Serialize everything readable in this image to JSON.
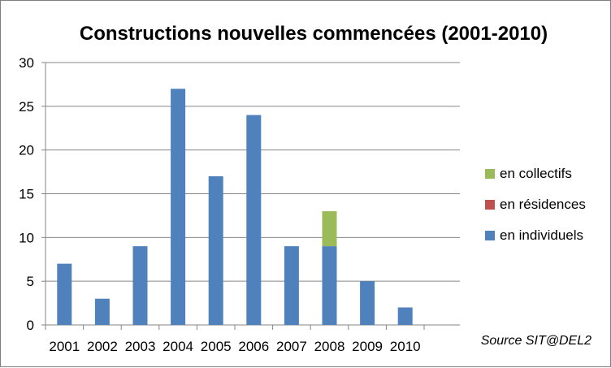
{
  "chart_data": {
    "type": "bar",
    "stacked": true,
    "title": "Constructions nouvelles commencées (2001-2010)",
    "source": "Source SIT@DEL2",
    "categories": [
      "2001",
      "2002",
      "2003",
      "2004",
      "2005",
      "2006",
      "2007",
      "2008",
      "2009",
      "2010"
    ],
    "series": [
      {
        "name": "en individuels",
        "color": "#4f81bd",
        "values": [
          7,
          3,
          9,
          27,
          17,
          24,
          9,
          9,
          5,
          2
        ]
      },
      {
        "name": "en résidences",
        "color": "#c0504d",
        "values": [
          0,
          0,
          0,
          0,
          0,
          0,
          0,
          0,
          0,
          0
        ]
      },
      {
        "name": "en collectifs",
        "color": "#9bbb59",
        "values": [
          0,
          0,
          0,
          0,
          0,
          0,
          0,
          4,
          0,
          0
        ]
      }
    ],
    "ylim": [
      0,
      30
    ],
    "yticks": [
      0,
      5,
      10,
      15,
      20,
      25,
      30
    ],
    "grid": true,
    "legend_position": "right",
    "legend_order": [
      "en collectifs",
      "en résidences",
      "en individuels"
    ],
    "xlabel": "",
    "ylabel": ""
  }
}
